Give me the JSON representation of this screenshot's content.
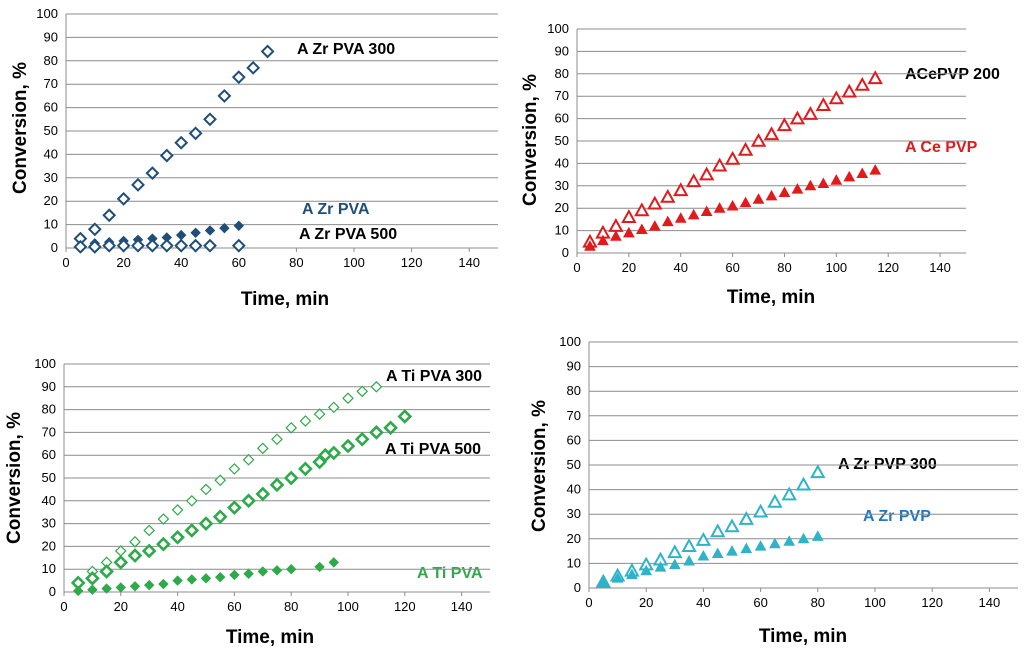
{
  "colors": {
    "navy": "#1f4e79",
    "red": "#e31a1c",
    "green": "#2eaa4a",
    "teal": "#2eb3c8",
    "blue": "#1f77c4",
    "grid": "#8c8c8c"
  },
  "chart_data": [
    {
      "type": "scatter",
      "xlabel": "Time, min",
      "ylabel": "Conversion, %",
      "xlim": [
        0,
        150
      ],
      "ylim": [
        0,
        100
      ],
      "xticks": [
        0,
        20,
        40,
        60,
        80,
        100,
        120,
        140
      ],
      "yticks": [
        0,
        10,
        20,
        30,
        40,
        50,
        60,
        70,
        80,
        90,
        100
      ],
      "series": [
        {
          "name": "A Zr PVA 300",
          "marker": "diamond-open",
          "color": "#1f4e79",
          "x": [
            5,
            10,
            15,
            20,
            25,
            30,
            35,
            40,
            45,
            50,
            55,
            60,
            65,
            70
          ],
          "y": [
            4,
            8,
            14,
            21,
            27,
            32,
            39.5,
            45,
            49,
            55,
            65,
            73,
            77,
            84
          ]
        },
        {
          "name": "A Zr PVA",
          "marker": "diamond-filled",
          "color": "#1f4e79",
          "x": [
            5,
            10,
            15,
            20,
            25,
            30,
            35,
            40,
            45,
            50,
            55,
            60
          ],
          "y": [
            1,
            2,
            2.5,
            3,
            3.5,
            4,
            4.5,
            5.5,
            6.5,
            7.5,
            8.5,
            9.5
          ]
        },
        {
          "name": "A Zr PVA 500",
          "marker": "diamond-open",
          "color": "#1f4e79",
          "x": [
            5,
            10,
            15,
            20,
            25,
            30,
            35,
            40,
            45,
            50,
            60
          ],
          "y": [
            0.5,
            0.5,
            1,
            1,
            1,
            1,
            1,
            1,
            1,
            1,
            1
          ]
        }
      ]
    },
    {
      "type": "scatter",
      "xlabel": "Time, min",
      "ylabel": "Conversion, %",
      "xlim": [
        0,
        150
      ],
      "ylim": [
        0,
        100
      ],
      "xticks": [
        0,
        20,
        40,
        60,
        80,
        100,
        120,
        140
      ],
      "yticks": [
        0,
        10,
        20,
        30,
        40,
        50,
        60,
        70,
        80,
        90,
        100
      ],
      "series": [
        {
          "name": "ACePVP 200",
          "marker": "triangle-open",
          "color": "#e31a1c",
          "x": [
            5,
            10,
            15,
            20,
            25,
            30,
            35,
            40,
            45,
            50,
            55,
            60,
            65,
            70,
            75,
            80,
            85,
            90,
            95,
            100,
            105,
            110,
            115
          ],
          "y": [
            5,
            9,
            12,
            16,
            19,
            22,
            25,
            28,
            32,
            35,
            39,
            42,
            46,
            50,
            53,
            57,
            60,
            62,
            66,
            69,
            72,
            75,
            78
          ]
        },
        {
          "name": "A Ce PVP",
          "marker": "triangle-filled",
          "color": "#e31a1c",
          "x": [
            5,
            10,
            15,
            20,
            25,
            30,
            35,
            40,
            45,
            50,
            55,
            60,
            65,
            70,
            75,
            80,
            85,
            90,
            95,
            100,
            105,
            110,
            115
          ],
          "y": [
            3,
            5.5,
            7.5,
            9,
            10.5,
            12,
            14,
            15.5,
            17,
            18.5,
            20,
            21,
            22.5,
            24,
            25.5,
            27,
            28.5,
            30,
            31,
            32.5,
            34,
            35.5,
            37
          ]
        }
      ]
    },
    {
      "type": "scatter",
      "xlabel": "Time, min",
      "ylabel": "Conversion,  %",
      "xlim": [
        0,
        150
      ],
      "ylim": [
        0,
        100
      ],
      "xticks": [
        0,
        20,
        40,
        60,
        80,
        100,
        120,
        140
      ],
      "yticks": [
        0,
        10,
        20,
        30,
        40,
        50,
        60,
        70,
        80,
        90,
        100
      ],
      "series": [
        {
          "name": "A Ti PVA 300",
          "marker": "diamond-open-small",
          "color": "#2eaa4a",
          "x": [
            5,
            10,
            15,
            20,
            25,
            30,
            35,
            40,
            45,
            50,
            55,
            60,
            65,
            70,
            75,
            80,
            85,
            90,
            95,
            100,
            105,
            110
          ],
          "y": [
            4,
            9,
            13,
            18,
            22,
            27,
            32,
            36,
            40,
            45,
            49,
            54,
            58,
            63,
            67,
            72,
            75,
            78,
            81,
            85,
            88,
            90
          ]
        },
        {
          "name": "A Ti PVA 500",
          "marker": "diamond-open-thick",
          "color": "#2eaa4a",
          "x": [
            5,
            10,
            15,
            20,
            25,
            30,
            35,
            40,
            45,
            50,
            55,
            60,
            65,
            70,
            75,
            80,
            85,
            90,
            92,
            95,
            100,
            105,
            110,
            115,
            120
          ],
          "y": [
            4,
            6,
            9,
            13,
            16,
            18,
            21,
            24,
            27,
            30,
            33,
            37,
            40,
            43,
            47,
            50,
            54,
            57,
            60,
            61,
            64,
            67,
            70,
            72,
            77
          ]
        },
        {
          "name": "A Ti PVA",
          "marker": "diamond-filled",
          "color": "#2eaa4a",
          "x": [
            5,
            10,
            15,
            20,
            25,
            30,
            35,
            40,
            45,
            50,
            55,
            60,
            65,
            70,
            75,
            80,
            90,
            95
          ],
          "y": [
            0.5,
            1,
            1.5,
            2,
            2.5,
            3,
            3.5,
            5,
            5.5,
            6,
            6.5,
            7.5,
            8,
            9,
            9.5,
            10,
            11,
            13
          ]
        }
      ]
    },
    {
      "type": "scatter",
      "xlabel": "Time, min",
      "ylabel": "Conversion, %",
      "xlim": [
        0,
        150
      ],
      "ylim": [
        0,
        100
      ],
      "xticks": [
        0,
        20,
        40,
        60,
        80,
        100,
        120,
        140
      ],
      "yticks": [
        0,
        10,
        20,
        30,
        40,
        50,
        60,
        70,
        80,
        90,
        100
      ],
      "series": [
        {
          "name": "A Zr PVP 300",
          "marker": "triangle-open",
          "color": "#2eb3c8",
          "x": [
            5,
            10,
            15,
            20,
            25,
            30,
            35,
            40,
            45,
            50,
            55,
            60,
            65,
            70,
            75,
            80
          ],
          "y": [
            2.5,
            5,
            7,
            9.5,
            11.5,
            14.5,
            17,
            19.5,
            23,
            25,
            28,
            31,
            35,
            38,
            42,
            47
          ]
        },
        {
          "name": "A Zr PVP",
          "marker": "triangle-filled",
          "color": "#2eb3c8",
          "x": [
            5,
            10,
            15,
            20,
            25,
            30,
            35,
            40,
            45,
            50,
            55,
            60,
            65,
            70,
            75,
            80
          ],
          "y": [
            2,
            4,
            5.5,
            7,
            8.5,
            9.5,
            11,
            13,
            14,
            15,
            16,
            17,
            18,
            19,
            20,
            21
          ]
        }
      ]
    }
  ],
  "labels": {
    "p1": [
      "A Zr PVA 300",
      "A Zr PVA",
      "A Zr PVA 500"
    ],
    "p2": [
      "ACePVP 200",
      "A Ce PVP"
    ],
    "p3": [
      "A Ti PVA 300",
      "A Ti PVA 500",
      "A Ti PVA"
    ],
    "p4": [
      "A Zr PVP 300",
      "A Zr PVP"
    ]
  }
}
